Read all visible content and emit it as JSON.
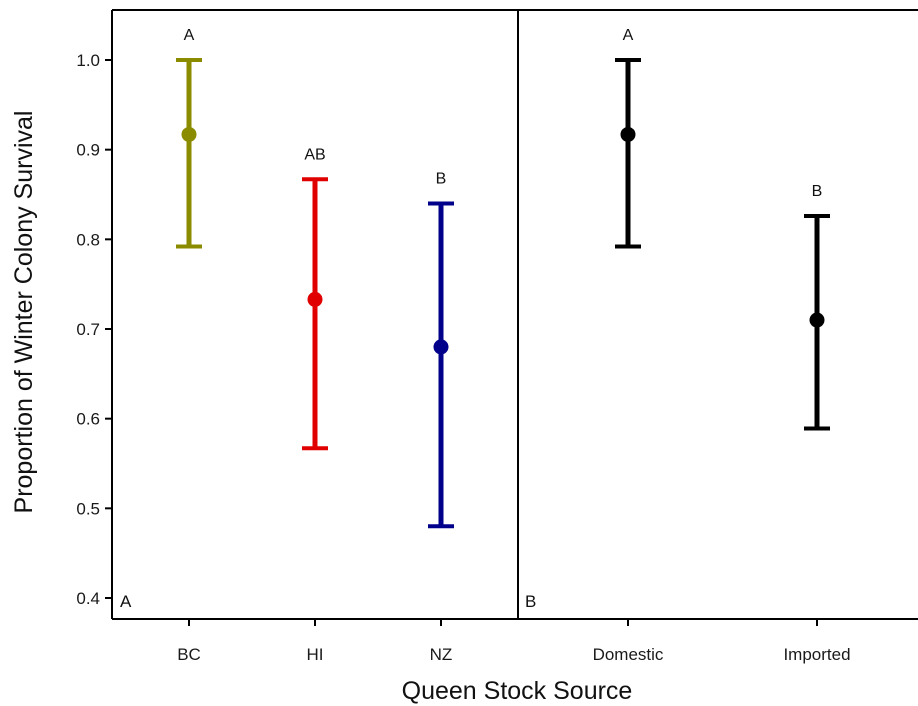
{
  "chart_data": {
    "type": "errorbar",
    "xlabel": "Queen Stock Source",
    "ylabel": "Proportion of Winter Colony Survival",
    "ylim": [
      0.4,
      1.0
    ],
    "yticks": [
      0.4,
      0.5,
      0.6,
      0.7,
      0.8,
      0.9,
      1.0
    ],
    "yticklabels": [
      "0.4",
      "0.5",
      "0.6",
      "0.7",
      "0.8",
      "0.9",
      "1.0"
    ],
    "grid": false,
    "panels": [
      {
        "tag": "A",
        "categories": [
          "BC",
          "HI",
          "NZ"
        ],
        "points": [
          {
            "category": "BC",
            "mean": 0.917,
            "lower": 0.792,
            "upper": 1.0,
            "sig": "A",
            "color": "#8b8b00"
          },
          {
            "category": "HI",
            "mean": 0.733,
            "lower": 0.567,
            "upper": 0.867,
            "sig": "AB",
            "color": "#e00000"
          },
          {
            "category": "NZ",
            "mean": 0.68,
            "lower": 0.48,
            "upper": 0.84,
            "sig": "B",
            "color": "#00008b"
          }
        ]
      },
      {
        "tag": "B",
        "categories": [
          "Domestic",
          "Imported"
        ],
        "points": [
          {
            "category": "Domestic",
            "mean": 0.917,
            "lower": 0.792,
            "upper": 1.0,
            "sig": "A",
            "color": "#000000"
          },
          {
            "category": "Imported",
            "mean": 0.71,
            "lower": 0.589,
            "upper": 0.826,
            "sig": "B",
            "color": "#000000"
          }
        ]
      }
    ]
  }
}
